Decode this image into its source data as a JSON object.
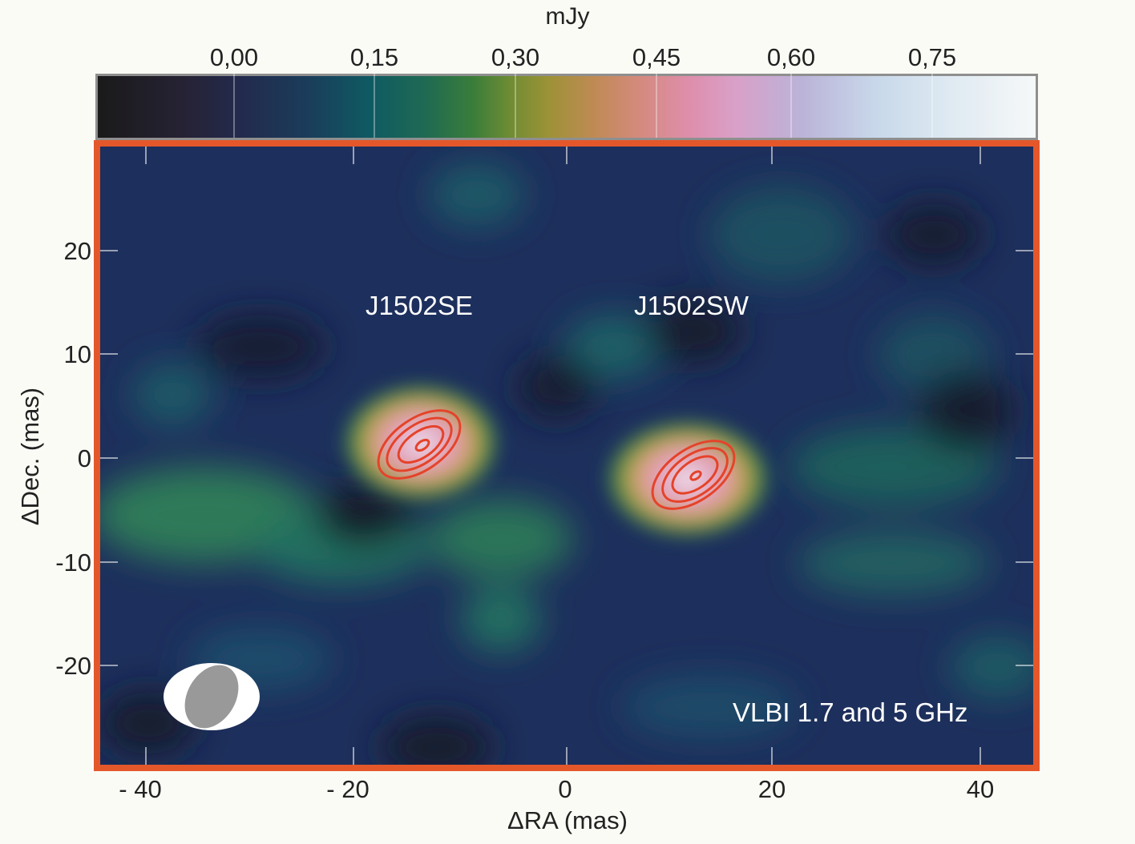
{
  "colorbar": {
    "unit": "mJy",
    "tick_labels": [
      "0,00",
      "0,15",
      "0,30",
      "0,45",
      "0,60",
      "0,75"
    ],
    "min_value": -0.15,
    "max_value": 0.85,
    "colormap_colors": [
      "#1a1a1a",
      "#232a4c",
      "#0f5a62",
      "#3a7d3a",
      "#9c9236",
      "#d58a80",
      "#de8eab",
      "#bbb3d8",
      "#dfeaf2",
      "#f6f8f8"
    ]
  },
  "axes": {
    "xlabel": "ΔRA (mas)",
    "ylabel": "ΔDec. (mas)",
    "x_ticks": [
      "- 40",
      "- 20",
      "0",
      "20",
      "40"
    ],
    "y_ticks": [
      "20",
      "10",
      "0",
      "-10",
      "-20"
    ],
    "x_range": [
      -45,
      45
    ],
    "y_range": [
      -30,
      30
    ]
  },
  "sources": [
    {
      "name": "J1502SE",
      "ra": -13,
      "dec": 1,
      "contour_color": "#e5432a"
    },
    {
      "name": "J1502SW",
      "ra": 13,
      "dec": -2,
      "contour_color": "#e5432a"
    }
  ],
  "annotation": "VLBI 1.7 and 5 GHz",
  "colors": {
    "frame": "#e4572a",
    "background_noise": "#1d2f5c",
    "beam_fill": "#999999"
  },
  "beam_icon": "restoring-beam-ellipse"
}
